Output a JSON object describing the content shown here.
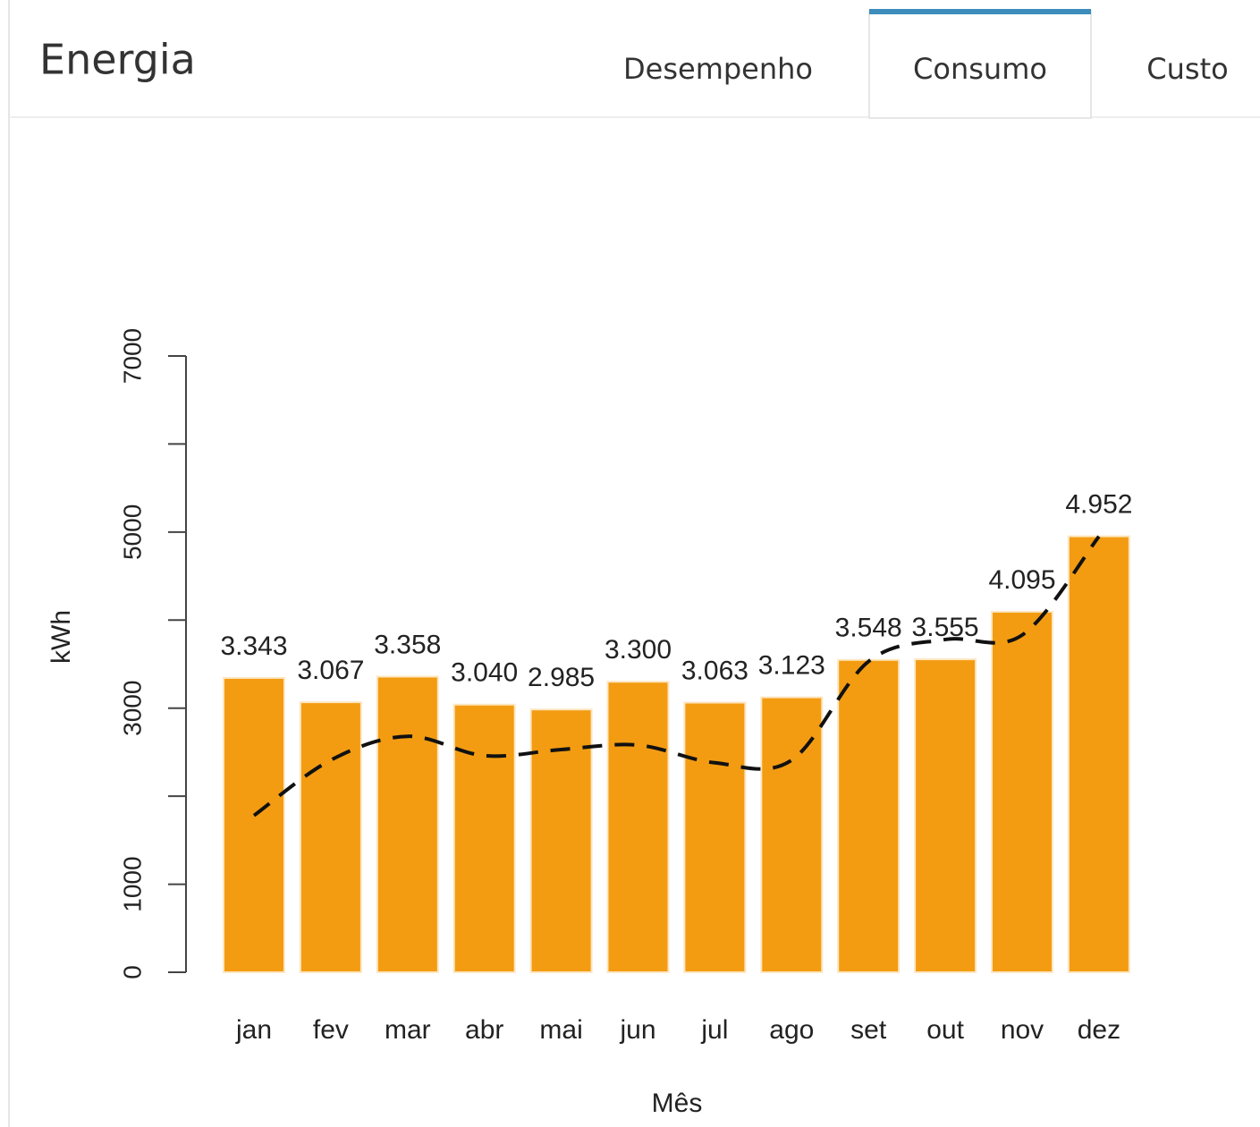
{
  "header": {
    "title": "Energia",
    "tabs": [
      "Desempenho",
      "Consumo",
      "Custo"
    ],
    "active_tab": 1
  },
  "chart_data": {
    "type": "bar",
    "xlabel": "Mês",
    "ylabel": "kWh",
    "categories": [
      "jan",
      "fev",
      "mar",
      "abr",
      "mai",
      "jun",
      "jul",
      "ago",
      "set",
      "out",
      "nov",
      "dez"
    ],
    "values": [
      3343,
      3067,
      3358,
      3040,
      2985,
      3300,
      3063,
      3123,
      3548,
      3555,
      4095,
      4952
    ],
    "value_labels": [
      "3.343",
      "3.067",
      "3.358",
      "3.040",
      "2.985",
      "3.300",
      "3.063",
      "3.123",
      "3.548",
      "3.555",
      "4.095",
      "4.952"
    ],
    "color": "#f39c12",
    "line": {
      "values": [
        1780,
        2410,
        2680,
        2460,
        2530,
        2580,
        2380,
        2410,
        3530,
        3780,
        3830,
        4950
      ],
      "color": "#111111",
      "dashed": true
    },
    "ylim": [
      0,
      7000
    ],
    "yticks": [
      0,
      1000,
      3000,
      5000,
      7000
    ],
    "yminorticks": [
      2000,
      4000,
      6000
    ]
  }
}
